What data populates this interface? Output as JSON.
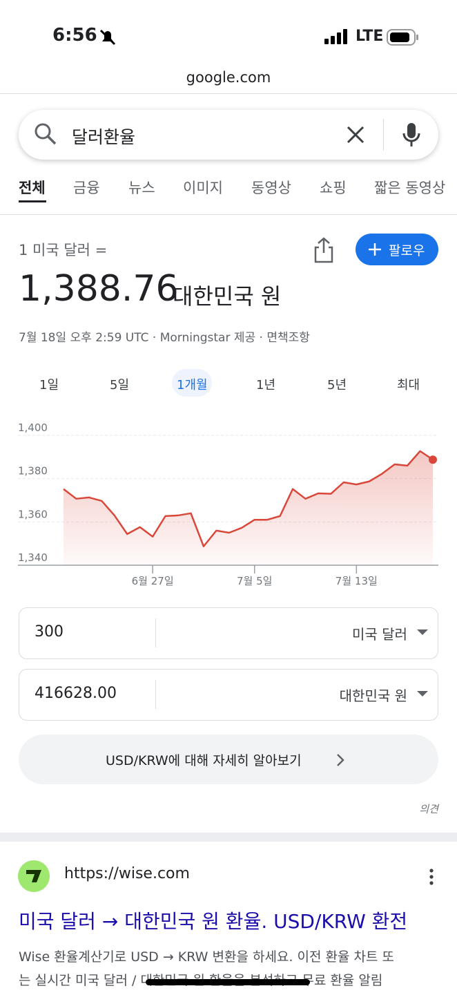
{
  "status_bar": {
    "time": "6:56",
    "network": "LTE"
  },
  "url": "google.com",
  "search": {
    "query": "달러환율"
  },
  "tabs": [
    "전체",
    "금융",
    "뉴스",
    "이미지",
    "동영상",
    "쇼핑",
    "짧은 동영상"
  ],
  "converter": {
    "base_label": "1 미국 달러 =",
    "rate": "1,388.76",
    "currency": "대한민국 원",
    "follow": "팔로우",
    "source": "7월 18일 오후 2:59 UTC · Morningstar 제공 · 면책조항",
    "ranges": [
      "1일",
      "5일",
      "1개월",
      "1년",
      "5년",
      "최대"
    ],
    "amount": "300",
    "from": "미국 달러",
    "result": "416628.00",
    "to": "대한민국 원",
    "more": "USD/KRW에 대해 자세히 알아보기",
    "feedback": "의견"
  },
  "chart_data": {
    "type": "line",
    "categories": [
      null,
      null,
      null,
      null,
      null,
      null,
      null,
      "6월 27일",
      null,
      null,
      null,
      null,
      null,
      null,
      null,
      "7월 5일",
      null,
      null,
      null,
      null,
      null,
      null,
      null,
      "7월 13일",
      null,
      null,
      null,
      null,
      null,
      null
    ],
    "values": [
      1375.2,
      1370.7,
      1371.3,
      1369.7,
      1363,
      1354.4,
      1357.6,
      1353.2,
      1362.7,
      1363,
      1364,
      1348.7,
      1356,
      1355,
      1357.3,
      1361,
      1361,
      1362.7,
      1375.2,
      1370.7,
      1373.2,
      1373,
      1378.3,
      1377.3,
      1378.7,
      1382.2,
      1386.6,
      1386,
      1392.7,
      1388.76
    ],
    "color": "#d9473a",
    "ylim": [
      1340,
      1400
    ],
    "yticks": [
      {
        "value": 1340,
        "label": "1,340"
      },
      {
        "value": 1360,
        "label": "1,360"
      },
      {
        "value": 1380,
        "label": "1,380"
      },
      {
        "value": 1400,
        "label": "1,400"
      }
    ],
    "grid": true
  },
  "result": {
    "url": "https://wise.com",
    "title": "미국 달러 → 대한민국 원 환율. USD/KRW 환전",
    "snippet": [
      "Wise 환율계산기로 USD → KRW 변환을 하세요. 이전 환율 차트 또",
      "는 실시간 미국 달러 / 대한민국 원 환율을 분석하고 무료 환율 알림"
    ]
  }
}
